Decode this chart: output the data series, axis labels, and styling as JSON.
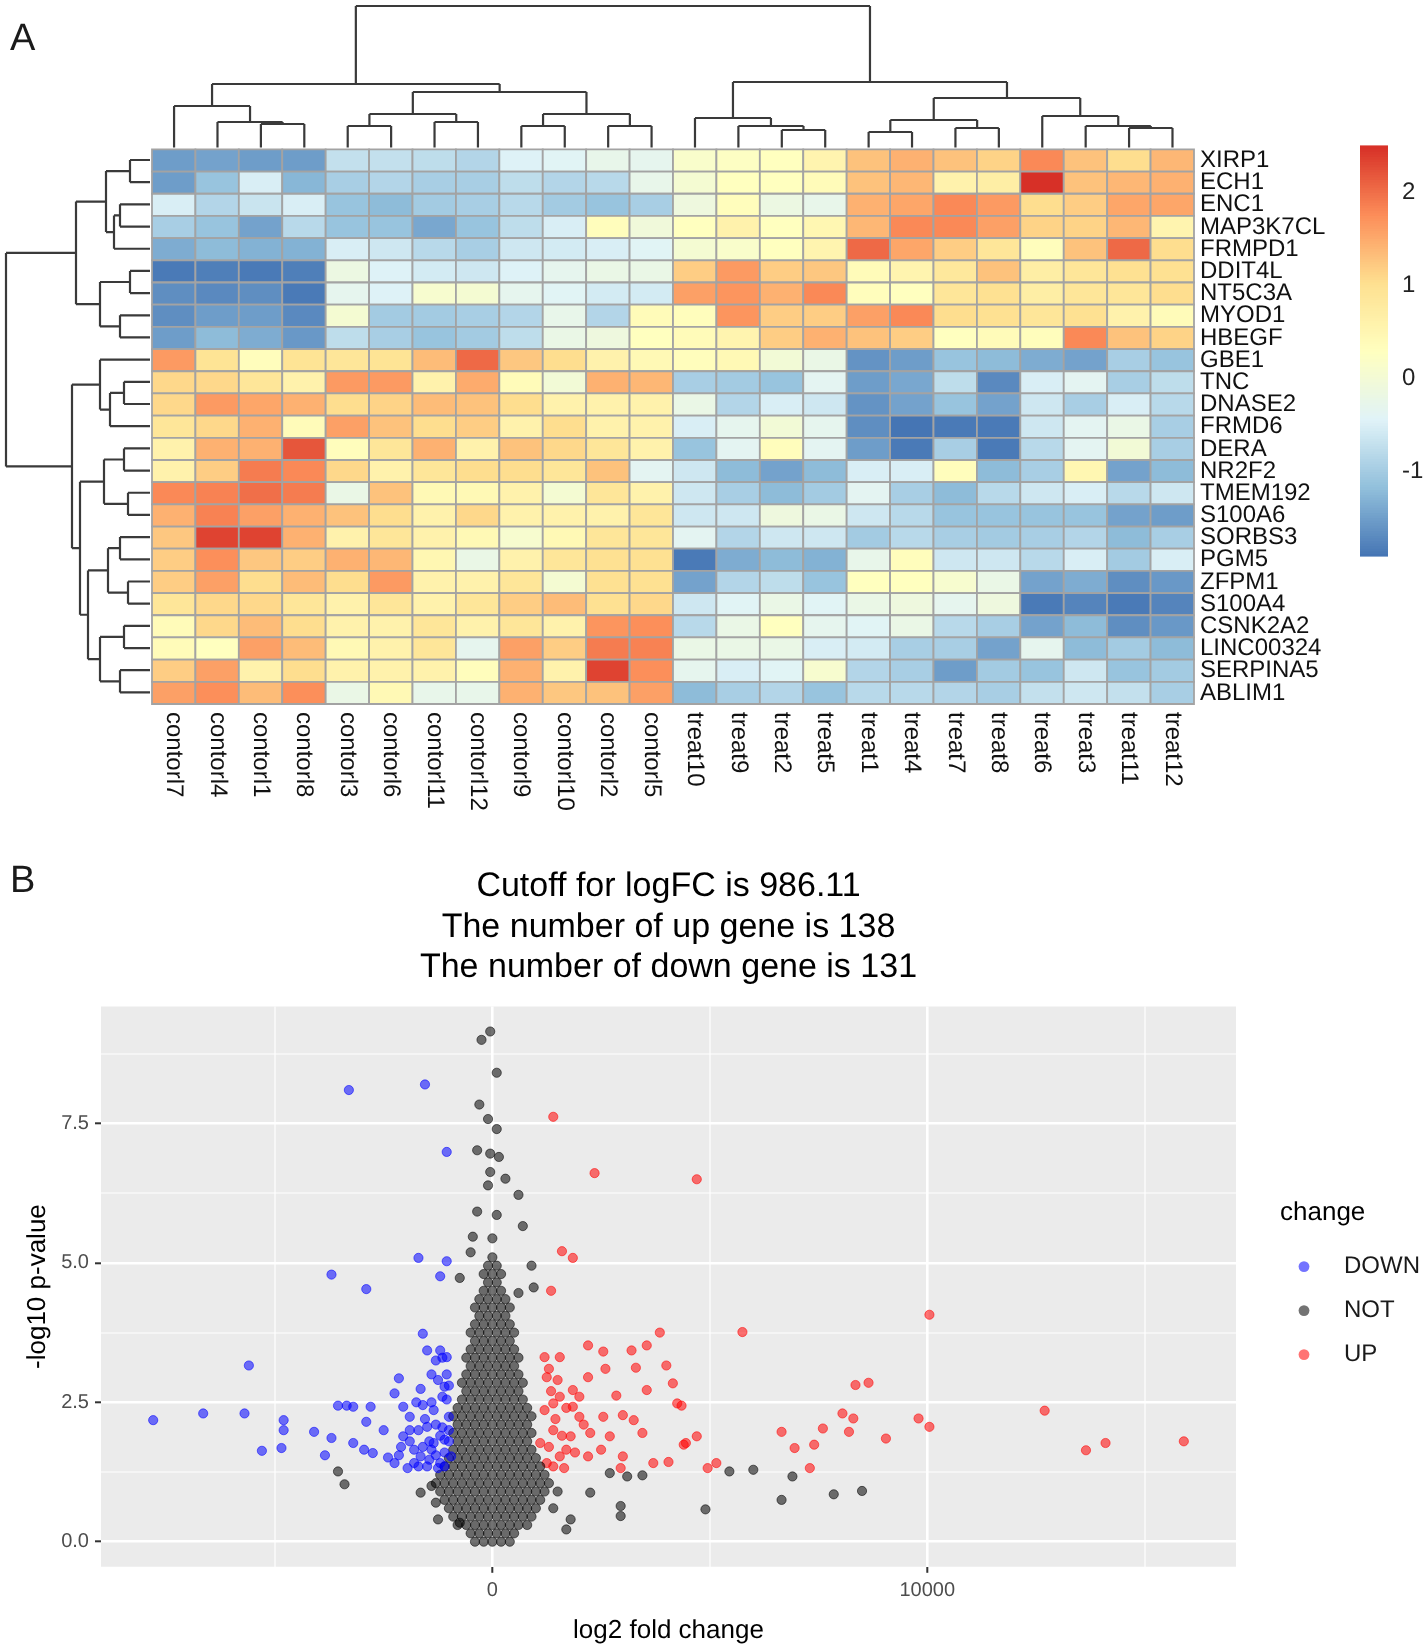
{
  "chart_data": [
    {
      "type": "heatmap",
      "annotations": [
        "A"
      ],
      "categories": [
        "contorl7",
        "contorl4",
        "contorl1",
        "contorl8",
        "contorl3",
        "contorl6",
        "contorl11",
        "contorl12",
        "contorl9",
        "contorl10",
        "contorl2",
        "contorl5",
        "treat10",
        "treat9",
        "treat2",
        "treat5",
        "treat1",
        "treat4",
        "treat7",
        "treat8",
        "treat6",
        "treat3",
        "treat11",
        "treat12"
      ],
      "y_categories": [
        "XIRP1",
        "ECH1",
        "ENC1",
        "MAP3K7CL",
        "FRMPD1",
        "DDIT4L",
        "NT5C3A",
        "MYOD1",
        "HBEGF",
        "GBE1",
        "TNC",
        "DNASE2",
        "FRMD6",
        "DERA",
        "NR2F2",
        "TMEM192",
        "S100A6",
        "SORBS3",
        "PGM5",
        "ZFPM1",
        "S100A4",
        "CSNK2A2",
        "LINC00324",
        "SERPINA5",
        "ABLIM1"
      ],
      "cells": [
        [
          -1.5,
          -1.45,
          -1.5,
          -1.5,
          -0.7,
          -0.7,
          -0.75,
          -0.85,
          -0.45,
          -0.4,
          -0.25,
          -0.3,
          0.15,
          0.25,
          0.3,
          0.55,
          1.3,
          1.45,
          1.3,
          1.15,
          1.8,
          1.3,
          1.05,
          1.4
        ],
        [
          -1.5,
          -1.1,
          -0.5,
          -1.25,
          -0.95,
          -0.85,
          -0.95,
          -0.95,
          -0.75,
          -0.85,
          -0.8,
          -0.25,
          0.05,
          0.3,
          0.3,
          0.4,
          1.3,
          1.4,
          0.6,
          0.7,
          2.5,
          1.3,
          1.4,
          1.45
        ],
        [
          -0.5,
          -0.85,
          -0.65,
          -0.5,
          -1.1,
          -1.2,
          -1.0,
          -0.95,
          -0.8,
          -1.0,
          -1.1,
          -0.95,
          -0.1,
          0.35,
          -0.15,
          -0.25,
          1.45,
          1.55,
          1.8,
          1.65,
          1.05,
          1.2,
          1.55,
          1.55
        ],
        [
          -0.95,
          -1.1,
          -1.45,
          -0.8,
          -1.1,
          -1.1,
          -1.4,
          -1.1,
          -0.75,
          -0.5,
          0.35,
          -0.05,
          0.3,
          0.6,
          0.3,
          0.5,
          1.4,
          1.8,
          1.8,
          1.6,
          1.15,
          1.15,
          1.4,
          0.55
        ],
        [
          -1.35,
          -1.2,
          -1.3,
          -1.3,
          -0.5,
          -0.6,
          -0.8,
          -0.95,
          -0.6,
          -0.55,
          -0.5,
          -0.4,
          0.05,
          0.15,
          0.3,
          0.55,
          2.05,
          1.55,
          1.2,
          0.9,
          0.35,
          1.3,
          2.05,
          1.05
        ],
        [
          -1.85,
          -1.8,
          -1.85,
          -1.8,
          -0.15,
          -0.45,
          -0.55,
          -0.6,
          -0.45,
          -0.3,
          -0.2,
          -0.2,
          1.2,
          1.65,
          1.2,
          1.25,
          0.4,
          0.55,
          0.85,
          1.3,
          0.7,
          0.9,
          1.0,
          1.0
        ],
        [
          -1.65,
          -1.7,
          -1.65,
          -1.85,
          -0.3,
          -0.45,
          0.1,
          0.05,
          -0.3,
          -0.4,
          -0.55,
          -0.55,
          1.6,
          1.7,
          1.45,
          1.8,
          0.35,
          0.3,
          0.9,
          1.0,
          0.7,
          0.9,
          0.9,
          1.05
        ],
        [
          -1.65,
          -1.5,
          -1.5,
          -1.7,
          0.05,
          -1.0,
          -1.0,
          -0.95,
          -0.85,
          -0.25,
          -0.85,
          0.4,
          0.35,
          1.7,
          1.2,
          1.2,
          1.6,
          1.8,
          1.05,
          1.0,
          0.9,
          1.0,
          0.6,
          0.4
        ],
        [
          -1.5,
          -1.2,
          -1.35,
          -1.55,
          -0.75,
          -0.95,
          -1.1,
          -1.0,
          -0.75,
          -0.2,
          -0.1,
          0.3,
          0.4,
          0.55,
          1.2,
          1.45,
          1.3,
          1.2,
          0.3,
          0.4,
          0.35,
          1.8,
          1.3,
          1.15
        ],
        [
          1.65,
          0.95,
          0.35,
          0.95,
          0.9,
          0.95,
          1.35,
          2.05,
          1.25,
          1.05,
          0.6,
          0.45,
          0.35,
          0.45,
          0,
          -0.2,
          -1.6,
          -1.5,
          -1.1,
          -1.2,
          -1.35,
          -1.45,
          -0.95,
          -1.1
        ],
        [
          1.1,
          1.1,
          0.9,
          0.6,
          1.65,
          1.65,
          0.6,
          1.5,
          0.4,
          0,
          1.45,
          1.4,
          -0.95,
          -1.0,
          -1.1,
          -0.35,
          -1.5,
          -1.4,
          -0.75,
          -1.7,
          -0.5,
          -0.35,
          -0.95,
          -0.75
        ],
        [
          1.1,
          1.65,
          1.55,
          1.45,
          1.05,
          1.15,
          1.35,
          1.3,
          1.05,
          0.6,
          0.6,
          0.6,
          -0.2,
          -0.85,
          -0.5,
          -0.6,
          -1.6,
          -1.45,
          -1.1,
          -1.45,
          -0.6,
          -0.95,
          -0.5,
          -0.8
        ],
        [
          0.9,
          1.1,
          1.45,
          0.4,
          1.6,
          1.3,
          1.05,
          1.2,
          0.6,
          1.05,
          0.6,
          0.6,
          -0.5,
          -0.3,
          0,
          -0.3,
          -1.65,
          -1.9,
          -1.85,
          -1.85,
          -0.6,
          -0.35,
          -0.2,
          -0.95
        ],
        [
          0.6,
          1.45,
          1.45,
          2.2,
          0.35,
          0.9,
          1.45,
          0.6,
          1.3,
          1.1,
          0.9,
          0.6,
          -1.1,
          -0.35,
          0.35,
          -0.35,
          -1.5,
          -1.85,
          -0.95,
          -1.85,
          -0.8,
          -0.35,
          0,
          -0.95
        ],
        [
          0.6,
          1.2,
          1.9,
          1.8,
          1.1,
          0.6,
          0.9,
          1.05,
          1.05,
          0.9,
          1.3,
          -0.35,
          -0.6,
          -1.2,
          -1.45,
          -1.2,
          -0.5,
          -0.5,
          0.35,
          -1.2,
          -0.95,
          0.5,
          -1.45,
          -1.2
        ],
        [
          1.8,
          1.85,
          2.0,
          1.9,
          -0.2,
          1.3,
          0.45,
          0.45,
          0.6,
          0.05,
          0.9,
          0.6,
          -0.6,
          -0.95,
          -1.2,
          -1.0,
          -0.35,
          -0.95,
          -1.2,
          -0.8,
          -0.6,
          -0.5,
          -0.8,
          -0.6
        ],
        [
          1.45,
          1.85,
          1.6,
          1.45,
          1.3,
          1.05,
          0.6,
          1.1,
          0.6,
          0.6,
          0.6,
          0.9,
          -0.6,
          -0.6,
          -0.1,
          -0.2,
          -0.6,
          -0.8,
          -1.1,
          -1.1,
          -1.1,
          -1.1,
          -1.45,
          -1.5
        ],
        [
          1.25,
          2.35,
          2.35,
          1.45,
          0.6,
          0.9,
          0.6,
          0.45,
          0.1,
          0.45,
          0.9,
          0.9,
          -0.35,
          -0.85,
          -0.6,
          -0.6,
          -1.0,
          -0.8,
          -0.95,
          -1.0,
          -0.95,
          -0.85,
          -1.2,
          -0.95
        ],
        [
          1.2,
          1.75,
          1.25,
          1.2,
          1.45,
          1.4,
          0.5,
          -0.2,
          0.6,
          0.9,
          1.0,
          1.0,
          -1.85,
          -1.35,
          -1.2,
          -1.3,
          -0.25,
          0.35,
          -0.6,
          -0.6,
          -0.8,
          -0.5,
          -1.0,
          -0.5
        ],
        [
          1.2,
          1.6,
          1.05,
          1.35,
          1.05,
          1.65,
          0.6,
          0.6,
          0.9,
          0.05,
          1.0,
          1.0,
          -1.45,
          -0.85,
          -0.75,
          -1.1,
          0.3,
          0.3,
          0.1,
          -0.2,
          -1.45,
          -1.35,
          -1.65,
          -1.55
        ],
        [
          0.9,
          1.1,
          1.1,
          0.9,
          0.6,
          0.9,
          0.6,
          0.9,
          1.2,
          1.35,
          1.0,
          1.1,
          -0.6,
          -0.4,
          -0.2,
          -0.4,
          -0.2,
          -0.1,
          -0.3,
          -0.1,
          -1.85,
          -1.75,
          -1.85,
          -1.75
        ],
        [
          0.4,
          1.1,
          1.35,
          1.05,
          0.6,
          0.6,
          0.9,
          0.6,
          0.9,
          0.6,
          1.7,
          1.75,
          -0.8,
          -0.2,
          0.3,
          -0.3,
          -0.4,
          -0.2,
          -0.8,
          -0.95,
          -1.45,
          -1.2,
          -1.65,
          -1.55
        ],
        [
          0.4,
          0.3,
          1.6,
          1.35,
          0.45,
          0.6,
          0.9,
          -0.3,
          1.6,
          1.2,
          1.9,
          1.85,
          -0.2,
          -0.2,
          -0.2,
          -0.5,
          -0.55,
          -0.95,
          -0.95,
          -1.45,
          -0.3,
          -1.2,
          -1.0,
          -1.2
        ],
        [
          1.2,
          1.6,
          0.6,
          1.05,
          0.6,
          0.6,
          0.6,
          0.35,
          1.45,
          0.6,
          2.35,
          1.75,
          -0.3,
          -0.5,
          -0.4,
          0.1,
          -0.85,
          -0.95,
          -1.5,
          -1.0,
          -1.1,
          -0.6,
          -1.1,
          -1.0
        ],
        [
          1.6,
          1.75,
          1.35,
          1.75,
          -0.2,
          0.45,
          -0.25,
          -0.25,
          1.45,
          1.25,
          1.3,
          1.6,
          -1.2,
          -0.95,
          -0.85,
          -1.1,
          -0.8,
          -0.8,
          -0.85,
          -0.95,
          -0.7,
          -0.6,
          -0.7,
          -0.95
        ]
      ],
      "clim": [
        -1.9,
        2.5
      ],
      "cticks": [
        -1,
        0,
        1,
        2
      ]
    },
    {
      "type": "scatter",
      "annotations": [
        "B"
      ],
      "title": "Cutoff for logFC is 986.11\nThe number of up gene is 138\nThe number of down gene is 131",
      "xlabel": "log2 fold change",
      "ylabel": "-log10 p-value",
      "legend_title": "change",
      "legend": "right",
      "grid": true,
      "marker": "circle",
      "xlim": [
        -9000,
        17100
      ],
      "ylim": [
        -0.45,
        9.6
      ],
      "xticks": [
        {
          "value": -5000,
          "label": null
        },
        0,
        {
          "value": 5000,
          "label": null
        },
        10000,
        {
          "value": 15000,
          "label": null
        }
      ],
      "yticks": [
        {
          "value": 0,
          "label": "0.0"
        },
        {
          "value": 1.25,
          "label": null
        },
        2.5,
        {
          "value": 3.75,
          "label": null
        },
        {
          "value": 5,
          "label": "5.0"
        },
        {
          "value": 6.25,
          "label": null
        },
        7.5,
        {
          "value": 8.75,
          "label": null
        }
      ],
      "series": [
        {
          "name": "DOWN",
          "color": "#0000ff",
          "x": [
            -7800,
            -6650,
            -5700,
            -5600,
            -5300,
            -4850,
            -4800,
            -4800,
            -4100,
            -3850,
            -3700,
            -3700,
            -3550,
            -3300,
            -3350,
            -3200,
            -2900,
            -2900,
            -2800,
            -3200,
            -2950,
            -2750,
            -2500,
            -2400,
            -2250,
            -2150,
            -2250,
            -2150,
            -2050,
            -2050,
            -1900,
            -1800,
            -1700,
            -1650,
            -1600,
            -1550,
            -1500,
            -1450,
            -1350,
            -1250,
            -1200,
            -1200,
            -1100,
            -1100,
            -1050,
            -1050,
            -1050,
            -1000,
            -950,
            -1650,
            -1350,
            -1200,
            -1950,
            -1800,
            -1500,
            -1300,
            -1100,
            -1200,
            -1300,
            -1400,
            -1050,
            -1150,
            -1300,
            -1000,
            -1000,
            -1450,
            -1600,
            -1700,
            -1900,
            -2100,
            -1550,
            -1050,
            -1150,
            -1700,
            -1500,
            -1100,
            -1000,
            -1250,
            -1400,
            -1600,
            -1750,
            -1150,
            -1400,
            -1900
          ],
          "values": [
            2.18,
            2.3,
            2.3,
            3.16,
            1.63,
            1.68,
            2.18,
            2.0,
            1.97,
            1.55,
            1.86,
            4.79,
            2.44,
            8.1,
            2.44,
            2.42,
            4.53,
            2.15,
            2.42,
            1.77,
            1.65,
            1.59,
            2.0,
            1.51,
            1.41,
            1.55,
            2.66,
            2.93,
            2.42,
            1.89,
            2.24,
            1.65,
            5.09,
            2.74,
            3.73,
            8.2,
            2.06,
            1.47,
            2.36,
            1.32,
            4.76,
            3.43,
            2.78,
            1.83,
            6.99,
            5.03,
            3.31,
            2.24,
            1.53,
            1.53,
            1.77,
            1.41,
            1.32,
            1.41,
            3.43,
            3.25,
            1.6,
            1.9,
            2.1,
            2.5,
            2.55,
            2.6,
            1.55,
            1.8,
            2.8,
            1.8,
            1.7,
            2.0,
            2.0,
            1.7,
            2.2,
            3.0,
            3.3,
            1.35,
            1.35,
            1.35,
            2.0,
            2.9,
            3.0,
            2.45,
            2.5,
            2.05,
            1.65,
            1.8
          ]
        },
        {
          "name": "NOT",
          "color": "#000000",
          "x": [
            -250,
            -50,
            100,
            -300,
            -100,
            100,
            -350,
            -50,
            150,
            -50,
            300,
            -100,
            600,
            -350,
            100,
            700,
            -450,
            0,
            -500,
            900,
            -750,
            600,
            950,
            -3550,
            -3400,
            -1650,
            -1250,
            -750,
            2700,
            3100,
            3450,
            2950,
            2950,
            2250,
            1800,
            1700,
            4900,
            5450,
            6000,
            6650,
            6900,
            7850,
            8500,
            -1400,
            1500,
            1400,
            -1300,
            -400,
            -200,
            0,
            200,
            400,
            -500,
            -300,
            -100,
            100,
            300,
            500,
            -800,
            -600,
            -400,
            -200,
            0,
            200,
            400,
            600,
            800,
            -900,
            -700,
            -500,
            -300,
            -100,
            100,
            300,
            500,
            700,
            900,
            -1000,
            -800,
            -600,
            -400,
            -200,
            0,
            200,
            400,
            600,
            800,
            1000,
            -1100,
            -900,
            -700,
            -500,
            -300,
            -100,
            100,
            300,
            500,
            700,
            900,
            1100,
            -1200,
            -1000,
            -800,
            -600,
            -400,
            -200,
            0,
            200,
            400,
            600,
            800,
            1000,
            1200,
            -1300,
            -1100,
            -900,
            -700,
            -500,
            -300,
            -100,
            100,
            300,
            500,
            700,
            900,
            1100,
            1300,
            -1200,
            -1000,
            -800,
            -600,
            -400,
            -200,
            0,
            200,
            400,
            600,
            800,
            1000,
            1200,
            -1100,
            -900,
            -700,
            -500,
            -300,
            -100,
            100,
            300,
            500,
            700,
            900,
            1100,
            -1000,
            -800,
            -600,
            -400,
            -200,
            0,
            200,
            400,
            600,
            800,
            1000,
            -900,
            -700,
            -500,
            -300,
            -100,
            100,
            300,
            500,
            700,
            900,
            -800,
            -600,
            -400,
            -200,
            0,
            200,
            400,
            600,
            800,
            -900,
            -700,
            -500,
            -300,
            -100,
            100,
            300,
            500,
            700,
            900,
            -800,
            -600,
            -400,
            -200,
            0,
            200,
            400,
            600,
            800,
            -900,
            -700,
            -500,
            -300,
            -100,
            100,
            300,
            500,
            700,
            900,
            -800,
            -600,
            -400,
            -200,
            0,
            200,
            400,
            600,
            800,
            -700,
            -500,
            -300,
            -100,
            100,
            300,
            500,
            700,
            -600,
            -400,
            -200,
            0,
            200,
            400,
            600,
            -700,
            -500,
            -300,
            -100,
            100,
            300,
            500,
            700,
            -600,
            -400,
            -200,
            0,
            200,
            400,
            600,
            -500,
            -300,
            -100,
            100,
            300,
            500,
            -600,
            -400,
            -200,
            0,
            200,
            400,
            600,
            -500,
            -300,
            -100,
            100,
            300,
            500,
            -400,
            -200,
            0,
            200,
            400,
            -500,
            -300,
            -100,
            100,
            300,
            500,
            -400,
            -200,
            0,
            200,
            400,
            -300,
            -100,
            100,
            300,
            -400,
            -200,
            0,
            200,
            400,
            -300,
            -100,
            100,
            300,
            -200,
            0,
            200,
            -100,
            100,
            -200,
            0,
            200,
            -100,
            100,
            0
          ],
          "values": [
            9.0,
            9.15,
            8.41,
            7.84,
            7.58,
            7.4,
            7.02,
            6.96,
            6.9,
            6.63,
            6.51,
            6.39,
            6.22,
            5.92,
            5.86,
            5.66,
            5.47,
            5.44,
            5.19,
            4.95,
            4.73,
            4.46,
            4.56,
            1.26,
            1.03,
            0.88,
            0.4,
            0.34,
            1.23,
            1.17,
            1.19,
            0.64,
            0.46,
            0.88,
            0.4,
            0.22,
            0.58,
            1.26,
            1.29,
            0.75,
            1.17,
            0.85,
            0.91,
            1.0,
            0.9,
            0.6,
            0.7,
            0,
            0,
            0,
            0,
            0,
            0.15,
            0.15,
            0.15,
            0.15,
            0.15,
            0.15,
            0.3,
            0.3,
            0.3,
            0.3,
            0.3,
            0.3,
            0.3,
            0.3,
            0.3,
            0.45,
            0.45,
            0.45,
            0.45,
            0.45,
            0.45,
            0.45,
            0.45,
            0.45,
            0.45,
            0.6,
            0.6,
            0.6,
            0.6,
            0.6,
            0.6,
            0.6,
            0.6,
            0.6,
            0.6,
            0.6,
            0.75,
            0.75,
            0.75,
            0.75,
            0.75,
            0.75,
            0.75,
            0.75,
            0.75,
            0.75,
            0.75,
            0.75,
            0.9,
            0.9,
            0.9,
            0.9,
            0.9,
            0.9,
            0.9,
            0.9,
            0.9,
            0.9,
            0.9,
            0.9,
            0.9,
            1.05,
            1.05,
            1.05,
            1.05,
            1.05,
            1.05,
            1.05,
            1.05,
            1.05,
            1.05,
            1.05,
            1.05,
            1.05,
            1.05,
            1.2,
            1.2,
            1.2,
            1.2,
            1.2,
            1.2,
            1.2,
            1.2,
            1.2,
            1.2,
            1.2,
            1.2,
            1.2,
            1.35,
            1.35,
            1.35,
            1.35,
            1.35,
            1.35,
            1.35,
            1.35,
            1.35,
            1.35,
            1.35,
            1.35,
            1.5,
            1.5,
            1.5,
            1.5,
            1.5,
            1.5,
            1.5,
            1.5,
            1.5,
            1.5,
            1.5,
            1.65,
            1.65,
            1.65,
            1.65,
            1.65,
            1.65,
            1.65,
            1.65,
            1.65,
            1.65,
            1.8,
            1.8,
            1.8,
            1.8,
            1.8,
            1.8,
            1.8,
            1.8,
            1.8,
            1.95,
            1.95,
            1.95,
            1.95,
            1.95,
            1.95,
            1.95,
            1.95,
            1.95,
            1.95,
            2.1,
            2.1,
            2.1,
            2.1,
            2.1,
            2.1,
            2.1,
            2.1,
            2.1,
            2.25,
            2.25,
            2.25,
            2.25,
            2.25,
            2.25,
            2.25,
            2.25,
            2.25,
            2.25,
            2.4,
            2.4,
            2.4,
            2.4,
            2.4,
            2.4,
            2.4,
            2.4,
            2.4,
            2.55,
            2.55,
            2.55,
            2.55,
            2.55,
            2.55,
            2.55,
            2.55,
            2.7,
            2.7,
            2.7,
            2.7,
            2.7,
            2.7,
            2.7,
            2.85,
            2.85,
            2.85,
            2.85,
            2.85,
            2.85,
            2.85,
            2.85,
            3.0,
            3.0,
            3.0,
            3.0,
            3.0,
            3.0,
            3.0,
            3.15,
            3.15,
            3.15,
            3.15,
            3.15,
            3.15,
            3.3,
            3.3,
            3.3,
            3.3,
            3.3,
            3.3,
            3.3,
            3.45,
            3.45,
            3.45,
            3.45,
            3.45,
            3.45,
            3.6,
            3.6,
            3.6,
            3.6,
            3.6,
            3.75,
            3.75,
            3.75,
            3.75,
            3.75,
            3.75,
            3.9,
            3.9,
            3.9,
            3.9,
            3.9,
            4.05,
            4.05,
            4.05,
            4.05,
            4.2,
            4.2,
            4.2,
            4.2,
            4.2,
            4.35,
            4.35,
            4.35,
            4.35,
            4.5,
            4.5,
            4.5,
            4.65,
            4.65,
            4.8,
            4.8,
            4.8,
            4.95,
            4.95,
            5.1
          ]
        },
        {
          "name": "UP",
          "color": "#ff0000",
          "x": [
            1400,
            2350,
            4700,
            1600,
            1850,
            1350,
            3850,
            2200,
            2550,
            3200,
            3550,
            4000,
            2600,
            2200,
            3300,
            4150,
            1850,
            1550,
            2850,
            3550,
            4250,
            1850,
            2550,
            3000,
            3250,
            3450,
            2250,
            2700,
            4700,
            4450,
            3700,
            4050,
            4950,
            5150,
            3000,
            2950,
            2500,
            1250,
            1200,
            1400,
            1100,
            1700,
            1250,
            2000,
            1800,
            1550,
            2200,
            1200,
            1550,
            1400,
            1300,
            1450,
            1600,
            1350,
            1700,
            1900,
            2000,
            1400,
            1650,
            2100,
            1300,
            1500,
            5750,
            10050,
            8350,
            8650,
            4350,
            8050,
            8300,
            8200,
            7600,
            6650,
            6950,
            7400,
            7300,
            9050,
            9800,
            10050,
            12700,
            13650,
            14100,
            15900,
            4400
          ],
          "values": [
            7.62,
            6.61,
            6.5,
            5.21,
            5.09,
            4.5,
            3.75,
            3.52,
            3.41,
            3.43,
            3.52,
            3.16,
            3.1,
            2.95,
            3.12,
            2.84,
            2.72,
            2.6,
            2.62,
            2.72,
            2.48,
            2.42,
            2.24,
            2.27,
            2.18,
            1.95,
            1.95,
            1.89,
            1.89,
            1.77,
            1.41,
            1.43,
            1.32,
            1.41,
            1.53,
            1.32,
            1.65,
            2.95,
            2.36,
            2.0,
            1.77,
            1.65,
            1.41,
            2.24,
            1.89,
            1.53,
            1.53,
            3.31,
            3.31,
            2.48,
            1.7,
            2.2,
            1.9,
            2.7,
            2.4,
            1.6,
            2.6,
            1.35,
            1.32,
            2.1,
            3.1,
            2.9,
            3.76,
            4.07,
            2.81,
            2.85,
            2.44,
            2.3,
            2.21,
            1.97,
            2.03,
            1.97,
            1.68,
            1.74,
            1.32,
            1.85,
            2.21,
            2.06,
            2.35,
            1.64,
            1.77,
            1.8,
            1.74
          ]
        }
      ]
    }
  ]
}
